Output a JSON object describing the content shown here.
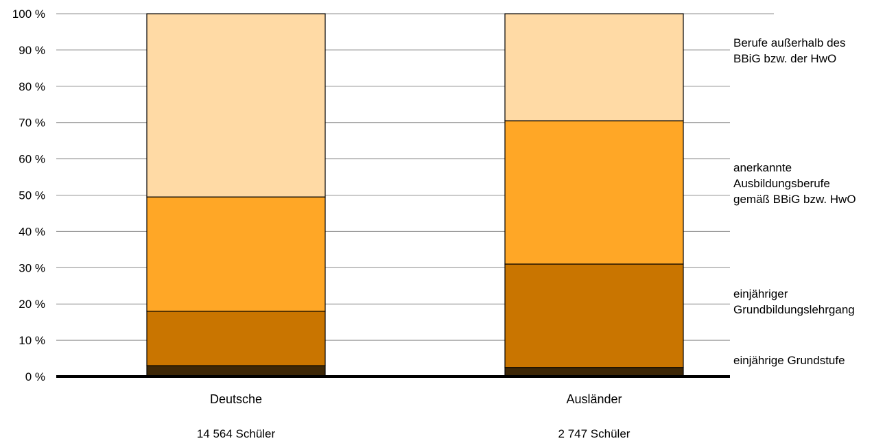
{
  "chart_data": {
    "type": "bar",
    "stacked": true,
    "percent_stacked": true,
    "categories": [
      "Deutsche",
      "Ausländer"
    ],
    "category_notes": [
      "14 564 Schüler",
      "2 747 Schüler"
    ],
    "y_ticks": [
      "0 %",
      "10 %",
      "20 %",
      "30 %",
      "40 %",
      "50 %",
      "60 %",
      "70 %",
      "80 %",
      "90 %",
      "100 %"
    ],
    "ylim": [
      0,
      100
    ],
    "grid": true,
    "legend_position": "right",
    "series": [
      {
        "name": "einjährige Grundstufe",
        "values": [
          3,
          2.5
        ],
        "color": "#3d2707"
      },
      {
        "name": "einjähriger Grundbildungslehrgang",
        "values": [
          15,
          28.5
        ],
        "color": "#c97500"
      },
      {
        "name": "anerkannte Ausbildungsberufe gemäß BBiG bzw. HwO",
        "values": [
          31.5,
          39.5
        ],
        "color": "#ffa726"
      },
      {
        "name": "Berufe außerhalb des BBiG bzw. der HwO",
        "values": [
          50.5,
          29.5
        ],
        "color": "#ffdaa5"
      }
    ],
    "legend_lines": [
      [
        "einjährige Grundstufe"
      ],
      [
        "einjähriger",
        "Grundbildungslehrgang"
      ],
      [
        "anerkannte",
        "Ausbildungsberufe",
        "gemäß BBiG bzw. HwO"
      ],
      [
        "Berufe außerhalb des",
        "BBiG bzw. der HwO"
      ]
    ]
  }
}
